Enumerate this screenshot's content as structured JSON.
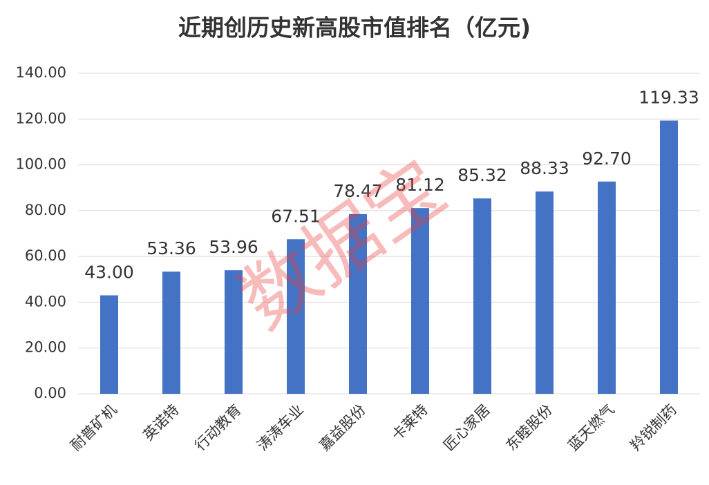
{
  "chart_data": {
    "type": "bar",
    "title": "近期创历史新高股市值排名（亿元)",
    "categories": [
      "耐普矿机",
      "英诺特",
      "行动教育",
      "涛涛车业",
      "嘉益股份",
      "卡莱特",
      "匠心家居",
      "东睦股份",
      "蓝天燃气",
      "羚锐制药"
    ],
    "values": [
      43.0,
      53.36,
      53.96,
      67.51,
      78.47,
      81.12,
      85.32,
      88.33,
      92.7,
      119.33
    ],
    "value_labels": [
      "43.00",
      "53.36",
      "53.96",
      "67.51",
      "78.47",
      "81.12",
      "85.32",
      "88.33",
      "92.70",
      "119.33"
    ],
    "color": "#4472c4",
    "ylim": [
      0,
      140
    ],
    "yticks": [
      {
        "value": 0,
        "label": "0.00"
      },
      {
        "value": 20,
        "label": "20.00"
      },
      {
        "value": 40,
        "label": "40.00"
      },
      {
        "value": 60,
        "label": "60.00"
      },
      {
        "value": 80,
        "label": "80.00"
      },
      {
        "value": 100,
        "label": "100.00"
      },
      {
        "value": 120,
        "label": "120.00"
      },
      {
        "value": 140,
        "label": "140.00"
      }
    ],
    "grid": true,
    "watermark": "数据宝"
  }
}
